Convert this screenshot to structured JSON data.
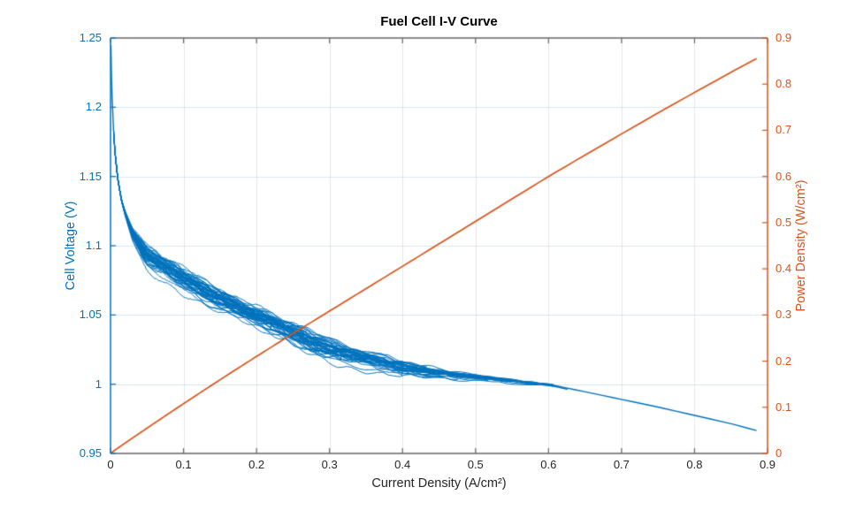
{
  "figure": {
    "background": "#ffffff"
  },
  "colors": {
    "left_axis": "#0072BD",
    "right_axis": "#D95319",
    "x_axis_line": "#666666",
    "tick_label": "#262626",
    "title": "#000000",
    "grid_horizontal": "rgba(0,114,189,0.16)",
    "grid_vertical": "rgba(70,70,70,0.13)",
    "voltage_line": "#0072BD",
    "power_line": "#D95319"
  },
  "chart_data": {
    "type": "line",
    "title": "Fuel Cell I-V Curve",
    "xlabel": "Current Density (A/cm²)",
    "ylabel_left": "Cell Voltage (V)",
    "ylabel_right": "Power Density (W/cm²)",
    "xlim": [
      0,
      0.9
    ],
    "ylim_left": [
      0.95,
      1.25
    ],
    "ylim_right": [
      0,
      0.9
    ],
    "grid": true,
    "legend": "none",
    "x_ticks": [
      0,
      0.1,
      0.2,
      0.3,
      0.4,
      0.5,
      0.6,
      0.7,
      0.8,
      0.9
    ],
    "x_tick_labels": [
      "0",
      "0.1",
      "0.2",
      "0.3",
      "0.4",
      "0.5",
      "0.6",
      "0.7",
      "0.8",
      "0.9"
    ],
    "y_ticks_left": [
      0.95,
      1,
      1.05,
      1.1,
      1.15,
      1.2,
      1.25
    ],
    "y_tick_labels_left": [
      "0.95",
      "1",
      "1.05",
      "1.1",
      "1.15",
      "1.2",
      "1.25"
    ],
    "y_ticks_right": [
      0,
      0.1,
      0.2,
      0.3,
      0.4,
      0.5,
      0.6,
      0.7,
      0.8,
      0.9
    ],
    "y_tick_labels_right": [
      "0",
      "0.1",
      "0.2",
      "0.3",
      "0.4",
      "0.5",
      "0.6",
      "0.7",
      "0.8",
      "0.9"
    ],
    "series": [
      {
        "name": "cell-voltage",
        "axis": "left",
        "color": "#0072BD",
        "style": "noisy-multisweep-band",
        "x": [
          0.0005,
          0.001,
          0.002,
          0.004,
          0.006,
          0.01,
          0.015,
          0.02,
          0.03,
          0.05,
          0.07,
          0.1,
          0.13,
          0.16,
          0.2,
          0.25,
          0.3,
          0.35,
          0.4,
          0.45,
          0.5,
          0.55,
          0.6,
          0.65,
          0.7,
          0.75,
          0.8,
          0.85,
          0.885
        ],
        "y": [
          1.245,
          1.23,
          1.21,
          1.185,
          1.168,
          1.148,
          1.133,
          1.124,
          1.11,
          1.095,
          1.088,
          1.078,
          1.069,
          1.061,
          1.051,
          1.039,
          1.028,
          1.02,
          1.0135,
          1.009,
          1.0055,
          1.0025,
          1.0,
          0.9945,
          0.989,
          0.9835,
          0.9775,
          0.9715,
          0.9665
        ]
      },
      {
        "name": "power-density",
        "axis": "right",
        "color": "#D95319",
        "style": "solid",
        "x": [
          0.0005,
          0.001,
          0.002,
          0.004,
          0.006,
          0.01,
          0.015,
          0.02,
          0.03,
          0.05,
          0.07,
          0.1,
          0.13,
          0.16,
          0.2,
          0.25,
          0.3,
          0.35,
          0.4,
          0.45,
          0.5,
          0.55,
          0.6,
          0.65,
          0.7,
          0.75,
          0.8,
          0.85,
          0.885
        ],
        "y": [
          0.0006,
          0.0012,
          0.0024,
          0.0047,
          0.007,
          0.0115,
          0.017,
          0.0225,
          0.0333,
          0.0548,
          0.0762,
          0.1078,
          0.139,
          0.1698,
          0.2102,
          0.2598,
          0.3084,
          0.357,
          0.4054,
          0.454,
          0.5028,
          0.5514,
          0.6,
          0.6464,
          0.6923,
          0.7376,
          0.782,
          0.8258,
          0.8554
        ]
      }
    ],
    "band": {
      "sweep_count": 26,
      "imax_min": 0.19,
      "imax_max": 0.62,
      "istart": 0.004,
      "spread_V": 0.005,
      "hysteresis_V": 0.004,
      "final_sweep_imax": 0.885
    }
  }
}
